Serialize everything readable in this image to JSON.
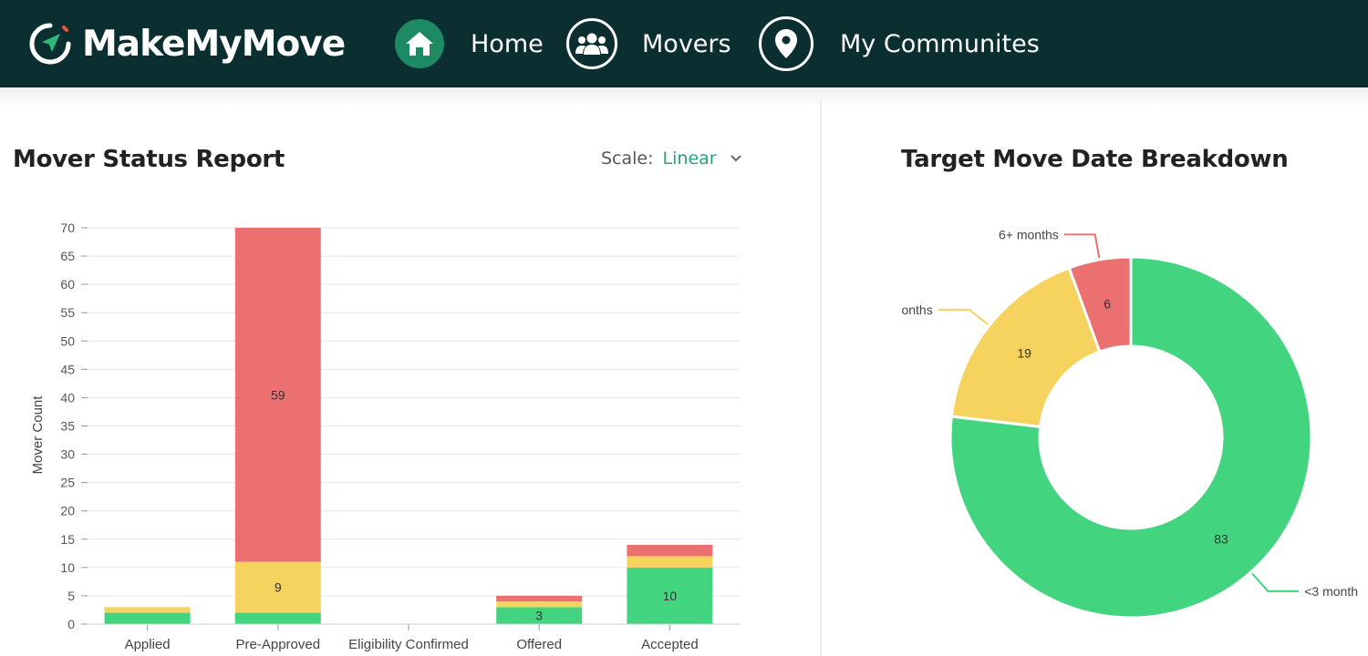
{
  "app": {
    "brand": "MakeMyMove"
  },
  "nav": {
    "items": [
      {
        "label": "Home",
        "icon": "home-icon"
      },
      {
        "label": "Movers",
        "icon": "users-icon"
      },
      {
        "label": "My Communites",
        "icon": "map-pin-icon"
      }
    ]
  },
  "status_panel": {
    "title": "Mover Status Report",
    "scale_label": "Scale:",
    "scale_value": "Linear"
  },
  "breakdown_panel": {
    "title": "Target Move Date Breakdown"
  },
  "colors": {
    "nav_bg": "#0b2e31",
    "accent": "#1d8a64",
    "green": "#42d47e",
    "yellow": "#f6d35e",
    "red": "#ec7070"
  },
  "chart_data": [
    {
      "type": "bar",
      "stacked": true,
      "categories": [
        "Applied",
        "Pre-Approved",
        "Eligibility Confirmed",
        "Offered",
        "Accepted"
      ],
      "series": [
        {
          "color": "#42d47e",
          "values": [
            2,
            2,
            0,
            3,
            10
          ]
        },
        {
          "color": "#f6d35e",
          "values": [
            1,
            9,
            0,
            1,
            2
          ]
        },
        {
          "color": "#ec7070",
          "values": [
            0,
            59,
            0,
            1,
            2
          ]
        }
      ],
      "labeled_values": [
        {
          "category": "Pre-Approved",
          "series": 2,
          "value": 59
        },
        {
          "category": "Pre-Approved",
          "series": 1,
          "value": 9
        },
        {
          "category": "Offered",
          "series": 0,
          "value": 3
        },
        {
          "category": "Accepted",
          "series": 0,
          "value": 10
        }
      ],
      "ylabel": "Mover Count",
      "ylim": [
        0,
        70
      ],
      "yticks": [
        0,
        5,
        10,
        15,
        20,
        25,
        30,
        35,
        40,
        45,
        50,
        55,
        60,
        65,
        70
      ],
      "grid": true
    },
    {
      "type": "pie",
      "donut": true,
      "slices": [
        {
          "label": "<3 month",
          "value": 83,
          "color": "#42d47e"
        },
        {
          "label": "onths",
          "value": 19,
          "color": "#f6d35e"
        },
        {
          "label": "6+ months",
          "value": 6,
          "color": "#ec7070"
        }
      ]
    }
  ]
}
